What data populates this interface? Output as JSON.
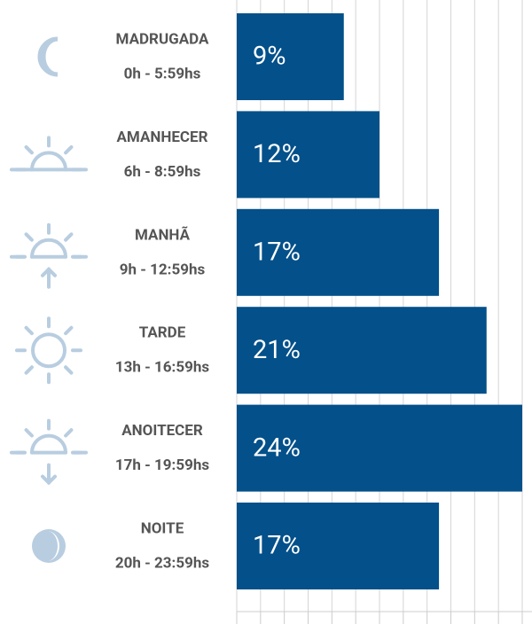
{
  "chart_data": {
    "type": "bar",
    "orientation": "horizontal",
    "categories": [
      "MADRUGADA",
      "AMANHECER",
      "MANHÃ",
      "TARDE",
      "ANOITECER",
      "NOITE"
    ],
    "periods": [
      "0h - 5:59hs",
      "6h - 8:59hs",
      "9h - 12:59hs",
      "13h - 16:59hs",
      "17h - 19:59hs",
      "20h - 23:59hs"
    ],
    "values": [
      9,
      12,
      17,
      21,
      24,
      17
    ],
    "value_labels": [
      "9%",
      "12%",
      "17%",
      "21%",
      "24%",
      "17%"
    ],
    "color": "#03508a",
    "xlim": [
      0,
      24
    ],
    "xticks": [
      0,
      2,
      4,
      6,
      8,
      10,
      12,
      14,
      16,
      18,
      20,
      22,
      24
    ],
    "grid": true
  }
}
